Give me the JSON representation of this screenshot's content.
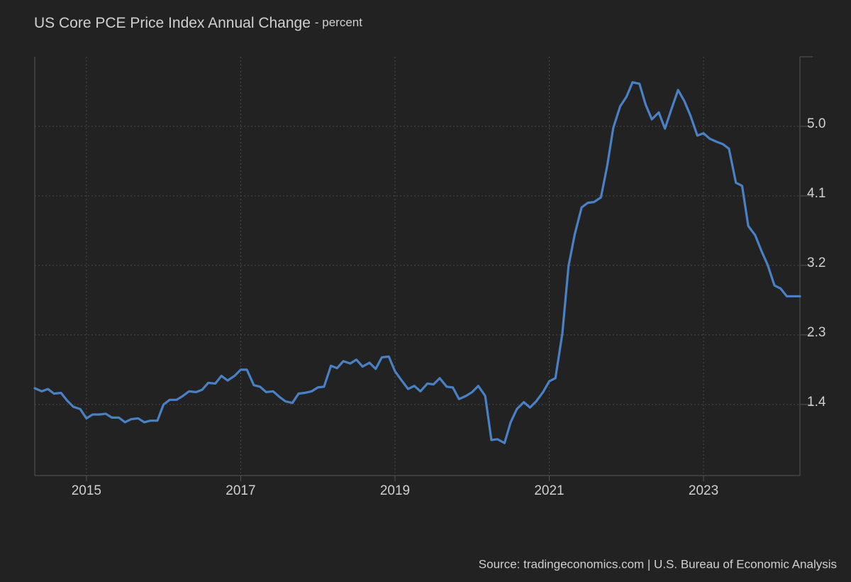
{
  "chart_data": {
    "type": "line",
    "title": "US Core PCE Price Index Annual Change",
    "subtitle": "- percent",
    "source": "Source: tradingeconomics.com | U.S. Bureau of Economic Analysis",
    "x": [
      2014.33,
      2014.42,
      2014.5,
      2014.58,
      2014.67,
      2014.75,
      2014.83,
      2014.92,
      2015,
      2015.08,
      2015.17,
      2015.25,
      2015.33,
      2015.42,
      2015.5,
      2015.58,
      2015.67,
      2015.75,
      2015.83,
      2015.92,
      2016,
      2016.08,
      2016.17,
      2016.25,
      2016.33,
      2016.42,
      2016.5,
      2016.58,
      2016.67,
      2016.75,
      2016.83,
      2016.92,
      2017,
      2017.08,
      2017.17,
      2017.25,
      2017.33,
      2017.42,
      2017.5,
      2017.58,
      2017.67,
      2017.75,
      2017.83,
      2017.92,
      2018,
      2018.08,
      2018.17,
      2018.25,
      2018.33,
      2018.42,
      2018.5,
      2018.58,
      2018.67,
      2018.75,
      2018.83,
      2018.92,
      2019,
      2019.08,
      2019.17,
      2019.25,
      2019.33,
      2019.42,
      2019.5,
      2019.58,
      2019.67,
      2019.75,
      2019.83,
      2019.92,
      2020,
      2020.08,
      2020.17,
      2020.25,
      2020.33,
      2020.42,
      2020.5,
      2020.58,
      2020.67,
      2020.75,
      2020.83,
      2020.92,
      2021,
      2021.08,
      2021.17,
      2021.25,
      2021.33,
      2021.42,
      2021.5,
      2021.58,
      2021.67,
      2021.75,
      2021.83,
      2021.92,
      2022,
      2022.08,
      2022.17,
      2022.25,
      2022.33,
      2022.42,
      2022.5,
      2022.58,
      2022.67,
      2022.75,
      2022.83,
      2022.92,
      2023,
      2023.08,
      2023.17,
      2023.25,
      2023.33,
      2023.42,
      2023.5,
      2023.58,
      2023.67,
      2023.75,
      2023.83,
      2023.92,
      2024,
      2024.08,
      2024.17,
      2024.25
    ],
    "series": [
      {
        "name": "Core PCE Price Index Annual Change",
        "color": "#4a80c4",
        "values": [
          1.61,
          1.57,
          1.6,
          1.54,
          1.55,
          1.45,
          1.37,
          1.34,
          1.22,
          1.27,
          1.27,
          1.28,
          1.23,
          1.23,
          1.17,
          1.21,
          1.22,
          1.17,
          1.19,
          1.19,
          1.4,
          1.46,
          1.46,
          1.51,
          1.57,
          1.56,
          1.59,
          1.68,
          1.67,
          1.77,
          1.71,
          1.77,
          1.85,
          1.85,
          1.65,
          1.63,
          1.56,
          1.57,
          1.5,
          1.44,
          1.42,
          1.54,
          1.55,
          1.57,
          1.62,
          1.63,
          1.9,
          1.87,
          1.96,
          1.93,
          1.98,
          1.89,
          1.94,
          1.86,
          2.01,
          2.02,
          1.83,
          1.72,
          1.6,
          1.64,
          1.57,
          1.67,
          1.66,
          1.74,
          1.63,
          1.62,
          1.47,
          1.51,
          1.56,
          1.64,
          1.51,
          0.94,
          0.95,
          0.9,
          1.17,
          1.34,
          1.43,
          1.36,
          1.44,
          1.56,
          1.7,
          1.74,
          2.32,
          3.19,
          3.6,
          3.95,
          4.01,
          4.02,
          4.08,
          4.48,
          4.98,
          5.26,
          5.38,
          5.57,
          5.55,
          5.28,
          5.09,
          5.18,
          4.97,
          5.21,
          5.47,
          5.33,
          5.14,
          4.88,
          4.91,
          4.84,
          4.8,
          4.77,
          4.71,
          4.27,
          4.23,
          3.71,
          3.59,
          3.39,
          3.21,
          2.94,
          2.9,
          2.8,
          2.8,
          2.8
        ]
      }
    ],
    "xlim": [
      2014.33,
      2024.25
    ],
    "xticks": [
      2015,
      2017,
      2019,
      2021,
      2023
    ],
    "ylim": [
      0.48,
      5.9
    ],
    "yticks": [
      1.4,
      2.3,
      3.2,
      4.1,
      5.0
    ],
    "grid": true
  }
}
